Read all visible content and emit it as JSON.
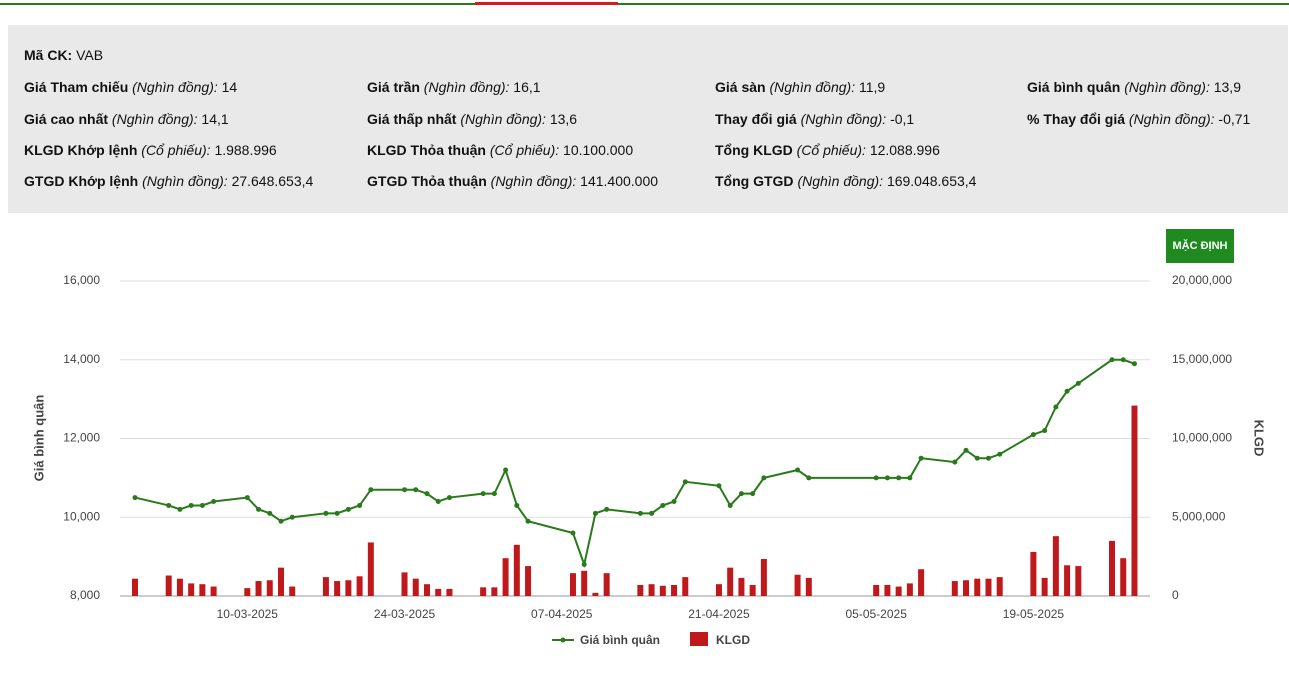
{
  "header": {
    "symbol": {
      "label": "Mã CK:",
      "value": "VAB"
    },
    "rows": [
      [
        {
          "label": "Giá Tham chiếu",
          "unit": "(Nghìn đồng):",
          "value": "14"
        },
        {
          "label": "Giá trần",
          "unit": "(Nghìn đồng):",
          "value": "16,1"
        },
        {
          "label": "Giá sàn",
          "unit": "(Nghìn đồng):",
          "value": "11,9"
        },
        {
          "label": "Giá bình quân",
          "unit": "(Nghìn đồng):",
          "value": "13,9"
        }
      ],
      [
        {
          "label": "Giá cao nhất",
          "unit": "(Nghìn đồng):",
          "value": "14,1"
        },
        {
          "label": "Giá thấp nhất",
          "unit": "(Nghìn đồng):",
          "value": "13,6"
        },
        {
          "label": "Thay đổi giá",
          "unit": "(Nghìn đồng):",
          "value": "-0,1"
        },
        {
          "label": "% Thay đổi giá",
          "unit": "(Nghìn đồng):",
          "value": "-0,71"
        }
      ],
      [
        {
          "label": "KLGD Khớp lệnh",
          "unit": "(Cổ phiếu):",
          "value": "1.988.996"
        },
        {
          "label": "KLGD Thỏa thuận",
          "unit": "(Cổ phiếu):",
          "value": "10.100.000"
        },
        {
          "label": "Tổng KLGD",
          "unit": "(Cổ phiếu):",
          "value": "12.088.996"
        }
      ],
      [
        {
          "label": "GTGD Khớp lệnh",
          "unit": "(Nghìn đồng):",
          "value": "27.648.653,4"
        },
        {
          "label": "GTGD Thỏa thuận",
          "unit": "(Nghìn đồng):",
          "value": "141.400.000"
        },
        {
          "label": "Tổng GTGD",
          "unit": "(Nghìn đồng):",
          "value": "169.048.653,4"
        }
      ]
    ]
  },
  "controls": {
    "reset_button": "MẶC ĐỊNH"
  },
  "chart_data": {
    "type": "bar-line",
    "y_label": "Giá bình quân",
    "y2_label": "KLGD",
    "x": [
      "28-02-2025",
      "03-03-2025",
      "04-03-2025",
      "05-03-2025",
      "06-03-2025",
      "07-03-2025",
      "10-03-2025",
      "11-03-2025",
      "12-03-2025",
      "13-03-2025",
      "14-03-2025",
      "17-03-2025",
      "18-03-2025",
      "19-03-2025",
      "20-03-2025",
      "21-03-2025",
      "24-03-2025",
      "25-03-2025",
      "26-03-2025",
      "27-03-2025",
      "28-03-2025",
      "31-03-2025",
      "01-04-2025",
      "02-04-2025",
      "03-04-2025",
      "04-04-2025",
      "08-04-2025",
      "09-04-2025",
      "10-04-2025",
      "11-04-2025",
      "14-04-2025",
      "15-04-2025",
      "16-04-2025",
      "17-04-2025",
      "18-04-2025",
      "21-04-2025",
      "22-04-2025",
      "23-04-2025",
      "24-04-2025",
      "25-04-2025",
      "28-04-2025",
      "29-04-2025",
      "05-05-2025",
      "06-05-2025",
      "07-05-2025",
      "08-05-2025",
      "09-05-2025",
      "12-05-2025",
      "13-05-2025",
      "14-05-2025",
      "15-05-2025",
      "16-05-2025",
      "19-05-2025",
      "20-05-2025",
      "21-05-2025",
      "22-05-2025",
      "23-05-2025",
      "26-05-2025",
      "27-05-2025",
      "28-05-2025"
    ],
    "xticks": [
      "10-03-2025",
      "24-03-2025",
      "07-04-2025",
      "21-04-2025",
      "05-05-2025",
      "19-05-2025"
    ],
    "ylim": [
      8000,
      16000
    ],
    "yticks": [
      {
        "value": 8000,
        "label": "8,000"
      },
      {
        "value": 10000,
        "label": "10,000"
      },
      {
        "value": 12000,
        "label": "12,000"
      },
      {
        "value": 14000,
        "label": "14,000"
      },
      {
        "value": 16000,
        "label": "16,000"
      }
    ],
    "y2lim": [
      0,
      20000000
    ],
    "y2ticks": [
      0,
      {
        "value": 5000000,
        "label": "5,000,000"
      },
      {
        "value": 10000000,
        "label": "10,000,000"
      },
      {
        "value": 15000000,
        "label": "15,000,000"
      },
      {
        "value": 20000000,
        "label": "20,000,000"
      }
    ],
    "grid": true,
    "legend": "bottom",
    "series": [
      {
        "name": "Giá bình quân",
        "type": "line",
        "color": "#2a7a1c",
        "values": [
          10500,
          10300,
          10200,
          10300,
          10300,
          10400,
          10500,
          10200,
          10100,
          9900,
          10000,
          10100,
          10100,
          10200,
          10300,
          10700,
          10700,
          10700,
          10600,
          10400,
          10500,
          10600,
          10600,
          11200,
          10300,
          9900,
          9600,
          8800,
          10100,
          10200,
          10100,
          10100,
          10300,
          10400,
          10900,
          10800,
          10300,
          10600,
          10600,
          11000,
          11200,
          11000,
          11000,
          11000,
          11000,
          11000,
          11500,
          11400,
          11700,
          11500,
          11500,
          11600,
          12100,
          12200,
          12800,
          13200,
          13400,
          14000,
          14000,
          13900
        ]
      },
      {
        "name": "KLGD",
        "type": "bar",
        "axis": "y2",
        "color": "#c0191c",
        "values": [
          1100000,
          1300000,
          1100000,
          800000,
          750000,
          600000,
          500000,
          950000,
          1000000,
          1800000,
          600000,
          1200000,
          950000,
          1000000,
          1250000,
          3400000,
          1500000,
          1100000,
          750000,
          450000,
          450000,
          550000,
          550000,
          2400000,
          3250000,
          1900000,
          1450000,
          1600000,
          200000,
          1450000,
          700000,
          750000,
          650000,
          700000,
          1200000,
          750000,
          1800000,
          1150000,
          700000,
          2350000,
          1350000,
          1150000,
          700000,
          700000,
          600000,
          800000,
          1700000,
          950000,
          1000000,
          1100000,
          1100000,
          1200000,
          2800000,
          1150000,
          3800000,
          1950000,
          1900000,
          3500000,
          2400000,
          12088996
        ]
      }
    ]
  }
}
